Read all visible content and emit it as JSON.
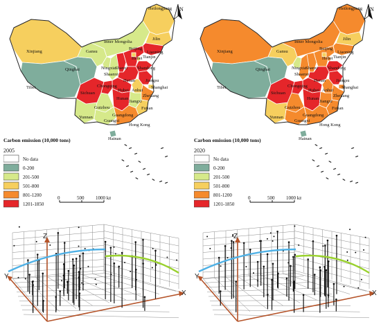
{
  "legend": {
    "title": "Carbon emission (10,000 tons)",
    "classes": [
      {
        "label": "No data",
        "color": "#ffffff"
      },
      {
        "label": "0-200",
        "color": "#7fad9c"
      },
      {
        "label": "201-500",
        "color": "#d6e98a"
      },
      {
        "label": "501-800",
        "color": "#f6cf5e"
      },
      {
        "label": "801-1200",
        "color": "#f58a2d"
      },
      {
        "label": "1201-1850",
        "color": "#e5262a"
      }
    ]
  },
  "scalebar": {
    "ticks": [
      "0",
      "500",
      "1000 km"
    ]
  },
  "north_label": "N",
  "provinces": [
    "Heilongjiang",
    "Jilin",
    "Liaoning",
    "Inner Mongolia",
    "Xinjiang",
    "Tibet",
    "Qinghai",
    "Gansu",
    "Ningxia",
    "Shaanxi",
    "Shanxi",
    "Hebei",
    "Beijing",
    "Tianjin",
    "Shandong",
    "Henan",
    "Hubei",
    "Hunan",
    "Jiangxi",
    "Anhui",
    "Jiangsu",
    "Shanghai",
    "Zhejiang",
    "Fujian",
    "Guangdong",
    "Guangxi",
    "Guizhou",
    "Yunnan",
    "Sichuan",
    "Chongqing",
    "Hainan",
    "Hong Kong"
  ],
  "maps": [
    {
      "year": "2005",
      "classes": {
        "Heilongjiang": "501-800",
        "Jilin": "501-800",
        "Liaoning": "1201-1850",
        "Inner Mongolia": "201-500",
        "Xinjiang": "501-800",
        "Tibet": "0-200",
        "Qinghai": "0-200",
        "Gansu": "201-500",
        "Ningxia": "201-500",
        "Shaanxi": "201-500",
        "Shanxi": "1201-1850",
        "Hebei": "1201-1850",
        "Beijing": "501-800",
        "Tianjin": "501-800",
        "Shandong": "1201-1850",
        "Henan": "1201-1850",
        "Hubei": "1201-1850",
        "Hunan": "1201-1850",
        "Jiangxi": "201-500",
        "Anhui": "501-800",
        "Jiangsu": "1201-1850",
        "Shanghai": "501-800",
        "Zhejiang": "801-1200",
        "Fujian": "501-800",
        "Guangdong": "801-1200",
        "Guangxi": "201-500",
        "Guizhou": "201-500",
        "Yunnan": "201-500",
        "Sichuan": "1201-1850",
        "Chongqing": "1201-1850",
        "Hainan": "0-200",
        "Hong Kong": "No data"
      }
    },
    {
      "year": "2020",
      "classes": {
        "Heilongjiang": "801-1200",
        "Jilin": "501-800",
        "Liaoning": "801-1200",
        "Inner Mongolia": "801-1200",
        "Xinjiang": "801-1200",
        "Tibet": "0-200",
        "Qinghai": "0-200",
        "Gansu": "501-800",
        "Ningxia": "201-500",
        "Shaanxi": "801-1200",
        "Shanxi": "801-1200",
        "Hebei": "801-1200",
        "Beijing": "501-800",
        "Tianjin": "801-1200",
        "Shandong": "1201-1850",
        "Henan": "1201-1850",
        "Hubei": "1201-1850",
        "Hunan": "1201-1850",
        "Jiangxi": "801-1200",
        "Anhui": "801-1200",
        "Jiangsu": "1201-1850",
        "Shanghai": "801-1200",
        "Zhejiang": "801-1200",
        "Fujian": "801-1200",
        "Guangdong": "801-1200",
        "Guangxi": "801-1200",
        "Guizhou": "801-1200",
        "Yunnan": "501-800",
        "Sichuan": "1201-1850",
        "Chongqing": "1201-1850",
        "Hainan": "0-200",
        "Hong Kong": "No data"
      }
    }
  ],
  "trend": {
    "axis_labels": {
      "x": "X",
      "y": "Y",
      "z": "Z"
    },
    "colors": {
      "west_east": "#4fb1e6",
      "north_south": "#9ad22e",
      "axes": "#b5542a"
    }
  }
}
